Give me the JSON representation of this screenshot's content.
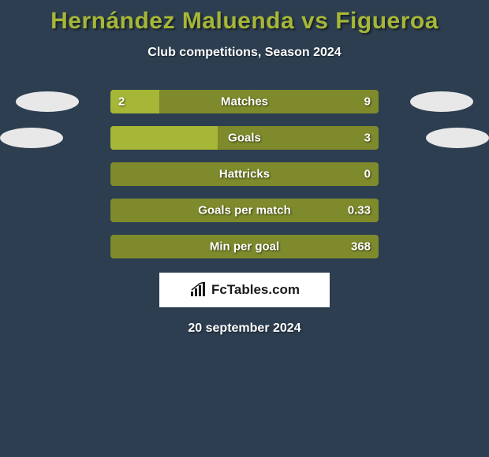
{
  "title": {
    "text": "Hernández Maluenda vs Figueroa",
    "color": "#a6b637",
    "fontsize": 30
  },
  "subtitle": "Club competitions, Season 2024",
  "colors": {
    "background": "#2c3e50",
    "bar_left": "#a6b637",
    "bar_right": "#7e8a2b",
    "avatar": "#e8e8e8",
    "text": "#ffffff"
  },
  "rows": [
    {
      "label": "Matches",
      "left_val": "2",
      "right_val": "9",
      "left_pct": 18.2,
      "show_avatars": true,
      "avatar_margin": 20
    },
    {
      "label": "Goals",
      "left_val": "",
      "right_val": "3",
      "left_pct": 40.0,
      "show_avatars": true,
      "avatar_margin": 40
    },
    {
      "label": "Hattricks",
      "left_val": "",
      "right_val": "0",
      "left_pct": 0,
      "show_avatars": false,
      "avatar_margin": 20
    },
    {
      "label": "Goals per match",
      "left_val": "",
      "right_val": "0.33",
      "left_pct": 0,
      "show_avatars": false,
      "avatar_margin": 20
    },
    {
      "label": "Min per goal",
      "left_val": "",
      "right_val": "368",
      "left_pct": 0,
      "show_avatars": false,
      "avatar_margin": 20
    }
  ],
  "footer": {
    "logo_text": "FcTables.com",
    "date": "20 september 2024"
  }
}
